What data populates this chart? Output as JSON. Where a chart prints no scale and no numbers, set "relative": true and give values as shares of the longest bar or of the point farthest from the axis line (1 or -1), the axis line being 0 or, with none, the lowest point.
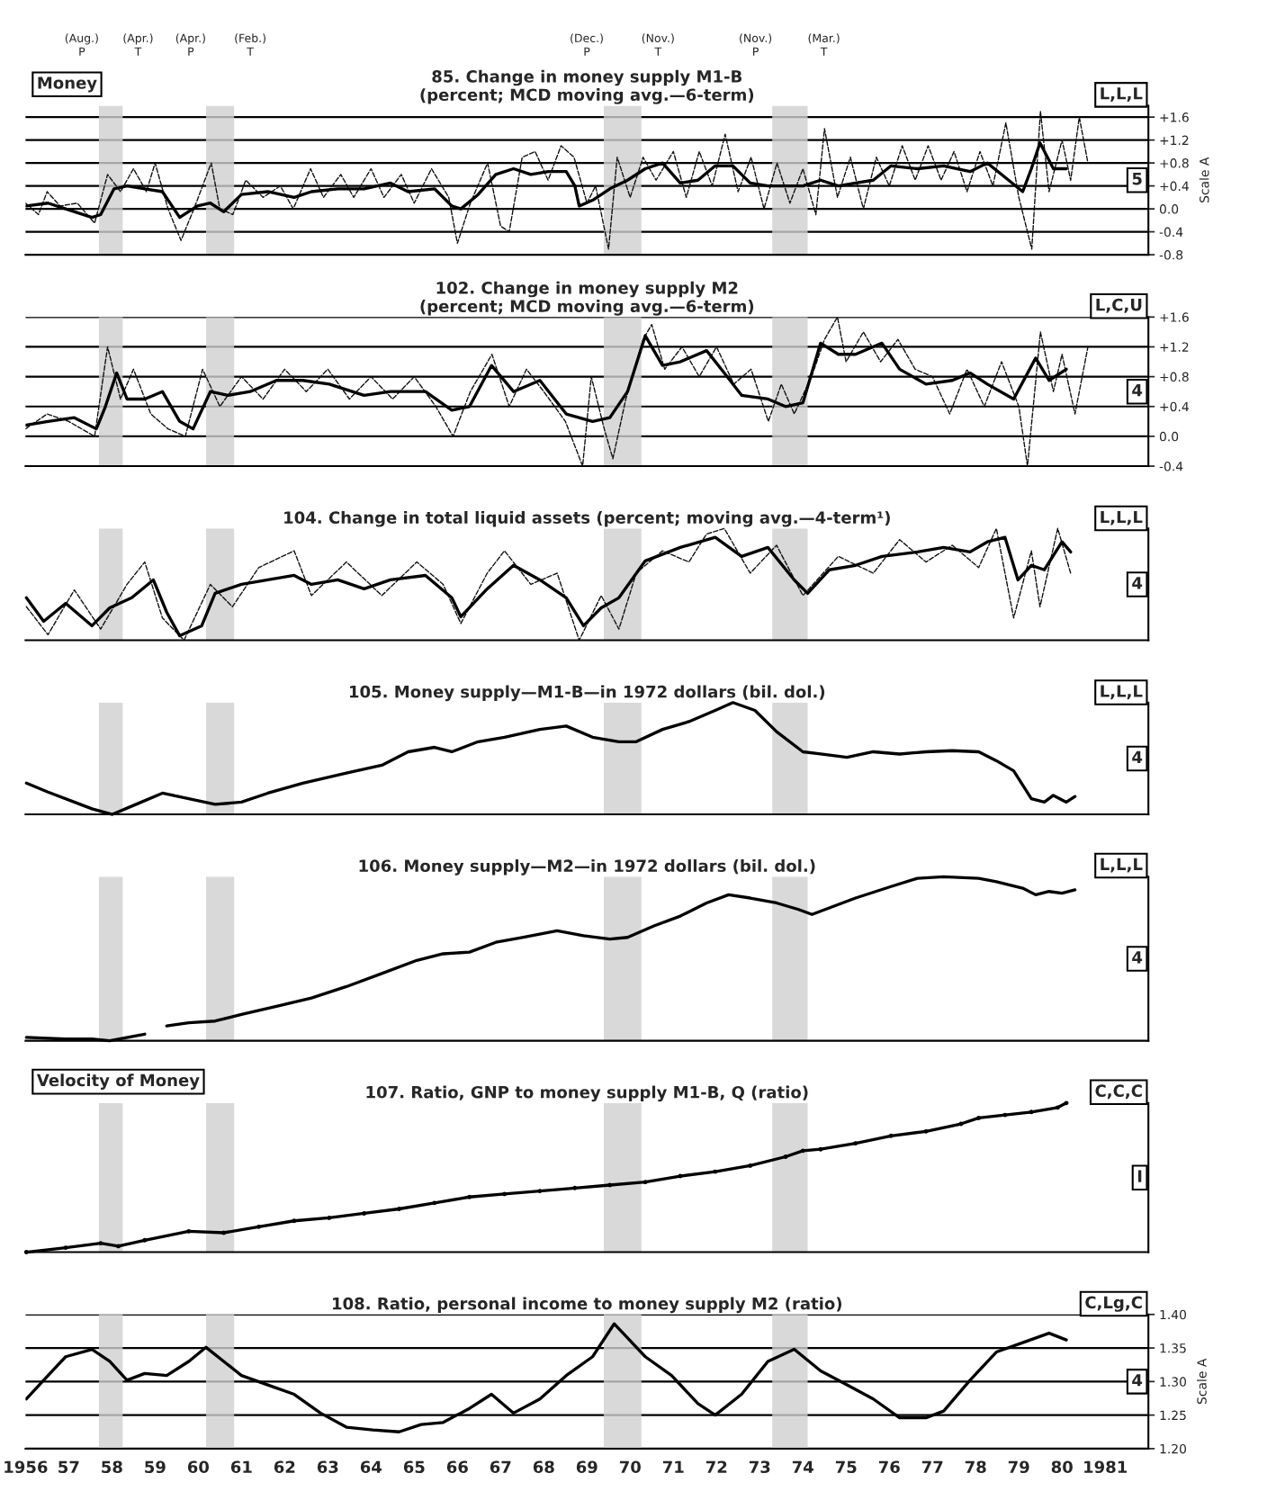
{
  "chart_data": [
    {
      "type": "line",
      "title": "85. Change in money supply M1-B\n(percent; MCD moving avg.—6-term)",
      "ylabel": "Scale A",
      "annotations": [
        "L,L,L",
        "5",
        "Money"
      ],
      "xlim": [
        1956,
        1982
      ],
      "ylim": [
        -0.8,
        1.8
      ],
      "yticks": [
        {
          "value": 1.6,
          "label": "+1.6"
        },
        {
          "value": 1.2,
          "label": "+1.2"
        },
        {
          "value": 0.8,
          "label": "+0.8"
        },
        {
          "value": 0.4,
          "label": "+0.4"
        },
        {
          "value": 0,
          "label": "0.0"
        },
        {
          "value": -0.4,
          "label": "-0.4"
        },
        {
          "value": -0.8,
          "label": "-0.8"
        }
      ],
      "grid": "y",
      "tick_labels": "y",
      "bands": [
        {
          "axis": "x",
          "from": 1957.7,
          "to": 1958.25,
          "color": "#cfcfcf",
          "label": [
            "(Aug.)\nP",
            "(Apr.)\nT"
          ]
        },
        {
          "axis": "x",
          "from": 1960.18,
          "to": 1960.83,
          "color": "#cfcfcf",
          "label": [
            "(Apr.)\nP",
            "(Feb.)\nT"
          ]
        },
        {
          "axis": "x",
          "from": 1969.39,
          "to": 1970.26,
          "color": "#cfcfcf",
          "label": [
            "(Dec.)\nP",
            "(Nov.)\nT"
          ]
        },
        {
          "axis": "x",
          "from": 1973.29,
          "to": 1974.11,
          "color": "#cfcfcf",
          "label": [
            "(Nov.)\nP",
            "(Mar.)\nT"
          ]
        }
      ],
      "series": [
        {
          "type": "line",
          "color": "#111111",
          "line_style": "dashed",
          "x": [
            1956.0,
            1956.3,
            1956.5,
            1956.8,
            1957.2,
            1957.6,
            1957.9,
            1958.2,
            1958.5,
            1958.8,
            1959.0,
            1959.3,
            1959.6,
            1959.9,
            1960.3,
            1960.5,
            1960.8,
            1961.1,
            1961.5,
            1961.9,
            1962.2,
            1962.6,
            1962.9,
            1963.3,
            1963.6,
            1964.0,
            1964.3,
            1964.7,
            1965.0,
            1965.4,
            1965.8,
            1966.0,
            1966.3,
            1966.7,
            1967.0,
            1967.2,
            1967.5,
            1967.8,
            1968.1,
            1968.4,
            1968.7,
            1969.0,
            1969.2,
            1969.5,
            1969.7,
            1970.0,
            1970.3,
            1970.6,
            1971.0,
            1971.3,
            1971.6,
            1971.9,
            1972.2,
            1972.5,
            1972.8,
            1973.1,
            1973.4,
            1973.7,
            1974.0,
            1974.3,
            1974.5,
            1974.8,
            1975.1,
            1975.4,
            1975.7,
            1976.0,
            1976.3,
            1976.6,
            1976.9,
            1977.2,
            1977.5,
            1977.8,
            1978.1,
            1978.4,
            1978.7,
            1979.0,
            1979.3,
            1979.5,
            1979.7,
            1980.0,
            1980.2,
            1980.4,
            1980.6
          ],
          "values": [
            0.1,
            -0.1,
            0.3,
            0.05,
            0.1,
            -0.25,
            0.6,
            0.3,
            0.7,
            0.3,
            0.8,
            0.0,
            -0.55,
            0.0,
            0.8,
            0.0,
            -0.1,
            0.5,
            0.2,
            0.4,
            0.0,
            0.7,
            0.2,
            0.6,
            0.2,
            0.7,
            0.2,
            0.6,
            0.1,
            0.7,
            0.2,
            -0.6,
            0.1,
            0.8,
            -0.3,
            -0.4,
            0.9,
            1.0,
            0.5,
            1.1,
            0.9,
            0.1,
            0.4,
            -0.7,
            0.9,
            0.2,
            0.9,
            0.5,
            1.0,
            0.2,
            1.0,
            0.4,
            1.3,
            0.3,
            0.9,
            0.0,
            0.8,
            0.1,
            0.7,
            -0.1,
            1.4,
            0.2,
            0.9,
            0.0,
            0.9,
            0.4,
            1.1,
            0.5,
            1.1,
            0.5,
            1.0,
            0.3,
            1.0,
            0.4,
            1.5,
            0.2,
            -0.7,
            1.7,
            0.3,
            1.2,
            0.5,
            1.6,
            0.8
          ]
        },
        {
          "type": "line",
          "color": "#000000",
          "line_style": "solid",
          "x": [
            1956.02,
            1956.52,
            1956.93,
            1957.54,
            1957.74,
            1958.05,
            1958.35,
            1958.76,
            1959.17,
            1959.57,
            1959.98,
            1960.28,
            1960.59,
            1961.0,
            1961.61,
            1962.22,
            1962.62,
            1963.23,
            1963.84,
            1964.45,
            1964.86,
            1965.47,
            1965.87,
            1966.08,
            1966.48,
            1966.89,
            1967.3,
            1967.7,
            1968.11,
            1968.52,
            1968.72,
            1968.82,
            1969.13,
            1969.53,
            1969.94,
            1970.35,
            1970.75,
            1971.16,
            1971.57,
            1971.97,
            1972.38,
            1972.78,
            1973.19,
            1973.6,
            1974.0,
            1974.41,
            1974.82,
            1975.22,
            1975.63,
            1976.04,
            1976.65,
            1977.26,
            1977.87,
            1978.27,
            1978.68,
            1979.09,
            1979.29,
            1979.49,
            1979.8,
            1980.1
          ],
          "values": [
            0.05,
            0.1,
            0.0,
            -0.15,
            -0.1,
            0.35,
            0.4,
            0.35,
            0.3,
            -0.15,
            0.05,
            0.1,
            -0.05,
            0.25,
            0.3,
            0.2,
            0.3,
            0.35,
            0.35,
            0.45,
            0.3,
            0.35,
            0.05,
            0.0,
            0.25,
            0.6,
            0.7,
            0.6,
            0.65,
            0.65,
            0.4,
            0.05,
            0.15,
            0.35,
            0.5,
            0.7,
            0.8,
            0.45,
            0.5,
            0.75,
            0.75,
            0.45,
            0.4,
            0.4,
            0.4,
            0.5,
            0.4,
            0.45,
            0.5,
            0.75,
            0.7,
            0.75,
            0.65,
            0.8,
            0.55,
            0.3,
            0.7,
            1.15,
            0.7,
            0.7
          ]
        }
      ]
    },
    {
      "type": "line",
      "title": "102. Change in money supply M2\n(percent; MCD moving avg.—6-term)",
      "annotations": [
        "L,C,U",
        "4"
      ],
      "xlim": [
        1956,
        1982
      ],
      "ylim": [
        -0.4,
        1.6
      ],
      "yticks": [
        {
          "value": 1.6,
          "label": "+1.6"
        },
        {
          "value": 1.2,
          "label": "+1.2"
        },
        {
          "value": 0.8,
          "label": "+0.8"
        },
        {
          "value": 0.4,
          "label": "+0.4"
        },
        {
          "value": 0,
          "label": "0.0"
        },
        {
          "value": -0.4,
          "label": "-0.4"
        }
      ],
      "grid": "y",
      "tick_labels": "y",
      "bands": [
        {
          "axis": "x",
          "from": 1957.7,
          "to": 1958.25,
          "color": "#cfcfcf"
        },
        {
          "axis": "x",
          "from": 1960.18,
          "to": 1960.83,
          "color": "#cfcfcf"
        },
        {
          "axis": "x",
          "from": 1969.39,
          "to": 1970.26,
          "color": "#cfcfcf"
        },
        {
          "axis": "x",
          "from": 1973.29,
          "to": 1974.11,
          "color": "#cfcfcf"
        }
      ],
      "series": [
        {
          "type": "line",
          "color": "#111111",
          "line_style": "dashed",
          "x": [
            1956.0,
            1956.5,
            1957.0,
            1957.6,
            1957.9,
            1958.2,
            1958.5,
            1958.9,
            1959.3,
            1959.7,
            1960.1,
            1960.5,
            1961.0,
            1961.5,
            1962.0,
            1962.5,
            1963.0,
            1963.5,
            1964.0,
            1964.5,
            1965.0,
            1965.5,
            1965.9,
            1966.3,
            1966.8,
            1967.2,
            1967.6,
            1968.0,
            1968.5,
            1968.9,
            1969.1,
            1969.4,
            1969.6,
            1969.9,
            1970.3,
            1970.5,
            1970.8,
            1971.2,
            1971.6,
            1972.0,
            1972.4,
            1972.8,
            1973.2,
            1973.5,
            1973.8,
            1974.2,
            1974.5,
            1974.8,
            1975.0,
            1975.4,
            1975.8,
            1976.2,
            1976.6,
            1977.0,
            1977.4,
            1977.8,
            1978.2,
            1978.6,
            1979.0,
            1979.2,
            1979.5,
            1979.8,
            1980.0,
            1980.3,
            1980.6
          ],
          "values": [
            0.1,
            0.3,
            0.2,
            0.0,
            1.2,
            0.5,
            0.9,
            0.3,
            0.1,
            0.0,
            0.9,
            0.4,
            0.8,
            0.5,
            0.9,
            0.6,
            0.9,
            0.5,
            0.8,
            0.5,
            0.8,
            0.4,
            0.0,
            0.6,
            1.1,
            0.4,
            0.9,
            0.6,
            0.2,
            -0.4,
            0.8,
            0.1,
            -0.3,
            0.5,
            1.3,
            1.5,
            0.9,
            1.2,
            0.8,
            1.2,
            0.7,
            0.9,
            0.2,
            0.7,
            0.3,
            0.8,
            1.3,
            1.6,
            1.0,
            1.4,
            1.0,
            1.3,
            0.9,
            0.8,
            0.3,
            0.9,
            0.4,
            1.0,
            0.4,
            -0.4,
            1.4,
            0.6,
            1.1,
            0.3,
            1.2
          ]
        },
        {
          "type": "line",
          "color": "#000000",
          "line_style": "solid",
          "x": [
            1956.02,
            1956.52,
            1957.13,
            1957.64,
            1957.85,
            1958.11,
            1958.35,
            1958.76,
            1959.17,
            1959.57,
            1959.88,
            1960.28,
            1960.69,
            1961.2,
            1961.81,
            1962.42,
            1963.03,
            1963.84,
            1964.45,
            1965.26,
            1965.87,
            1966.28,
            1966.79,
            1967.3,
            1967.91,
            1968.52,
            1969.13,
            1969.53,
            1969.94,
            1970.35,
            1970.75,
            1971.16,
            1971.77,
            1972.18,
            1972.58,
            1973.19,
            1973.6,
            1974.0,
            1974.41,
            1974.82,
            1975.22,
            1975.83,
            1976.24,
            1976.85,
            1977.46,
            1977.87,
            1978.27,
            1978.88,
            1979.39,
            1979.7,
            1980.1
          ],
          "values": [
            0.15,
            0.2,
            0.25,
            0.1,
            0.4,
            0.85,
            0.5,
            0.5,
            0.6,
            0.2,
            0.1,
            0.6,
            0.55,
            0.6,
            0.75,
            0.75,
            0.7,
            0.55,
            0.6,
            0.6,
            0.35,
            0.4,
            0.95,
            0.6,
            0.75,
            0.3,
            0.2,
            0.25,
            0.6,
            1.35,
            0.95,
            1.0,
            1.15,
            0.85,
            0.55,
            0.5,
            0.4,
            0.45,
            1.25,
            1.1,
            1.1,
            1.25,
            0.9,
            0.7,
            0.75,
            0.85,
            0.7,
            0.5,
            1.05,
            0.75,
            0.9
          ]
        }
      ]
    },
    {
      "type": "line",
      "title": "104. Change in total liquid assets (percent; moving avg.—4-term¹)",
      "annotations": [
        "L,L,L",
        "4"
      ],
      "relative": true,
      "xlim": [
        1956,
        1982
      ],
      "tick_labels": false,
      "bands": [
        {
          "axis": "x",
          "from": 1957.7,
          "to": 1958.25,
          "color": "#cfcfcf"
        },
        {
          "axis": "x",
          "from": 1960.18,
          "to": 1960.83,
          "color": "#cfcfcf"
        },
        {
          "axis": "x",
          "from": 1969.39,
          "to": 1970.26,
          "color": "#cfcfcf"
        },
        {
          "axis": "x",
          "from": 1973.29,
          "to": 1974.11,
          "color": "#cfcfcf"
        }
      ],
      "series": [
        {
          "type": "line",
          "color": "#111111",
          "line_style": "dashed",
          "x": [
            1956.02,
            1956.52,
            1957.13,
            1957.74,
            1958.35,
            1958.76,
            1959.17,
            1959.67,
            1960.28,
            1960.79,
            1961.4,
            1962.22,
            1962.62,
            1963.43,
            1964.25,
            1965.06,
            1965.67,
            1966.08,
            1966.69,
            1967.09,
            1967.7,
            1968.31,
            1968.82,
            1969.33,
            1969.74,
            1970.14,
            1970.75,
            1971.36,
            1971.77,
            1972.18,
            1972.78,
            1973.39,
            1974.0,
            1974.82,
            1975.63,
            1976.24,
            1976.85,
            1977.46,
            1978.07,
            1978.48,
            1978.88,
            1979.29,
            1979.49,
            1979.9,
            1980.2
          ],
          "values": [
            0.3,
            0.05,
            0.45,
            0.1,
            0.5,
            0.7,
            0.2,
            0.0,
            0.5,
            0.3,
            0.65,
            0.8,
            0.4,
            0.7,
            0.4,
            0.7,
            0.5,
            0.15,
            0.6,
            0.8,
            0.5,
            0.6,
            0.0,
            0.4,
            0.1,
            0.6,
            0.8,
            0.7,
            0.95,
            1.0,
            0.6,
            0.85,
            0.4,
            0.75,
            0.6,
            0.9,
            0.7,
            0.85,
            0.65,
            1.0,
            0.2,
            0.8,
            0.3,
            1.0,
            0.6
          ]
        },
        {
          "type": "line",
          "color": "#000000",
          "line_style": "solid",
          "x": [
            1956.02,
            1956.42,
            1956.93,
            1957.54,
            1957.95,
            1958.46,
            1958.96,
            1959.27,
            1959.57,
            1960.08,
            1960.39,
            1961.0,
            1961.61,
            1962.22,
            1962.62,
            1963.23,
            1963.84,
            1964.45,
            1965.26,
            1965.87,
            1966.08,
            1966.69,
            1967.3,
            1967.91,
            1968.52,
            1968.92,
            1969.33,
            1969.74,
            1970.35,
            1971.16,
            1971.97,
            1972.58,
            1973.19,
            1973.8,
            1974.11,
            1974.61,
            1975.22,
            1975.83,
            1976.65,
            1977.26,
            1977.87,
            1978.27,
            1978.68,
            1978.98,
            1979.29,
            1979.59,
            1980.0,
            1980.2
          ],
          "values": [
            0.38,
            0.17,
            0.33,
            0.13,
            0.29,
            0.38,
            0.54,
            0.25,
            0.04,
            0.13,
            0.42,
            0.5,
            0.54,
            0.58,
            0.5,
            0.54,
            0.46,
            0.54,
            0.58,
            0.38,
            0.21,
            0.46,
            0.67,
            0.54,
            0.38,
            0.13,
            0.29,
            0.38,
            0.71,
            0.83,
            0.92,
            0.75,
            0.83,
            0.54,
            0.42,
            0.63,
            0.67,
            0.75,
            0.79,
            0.83,
            0.79,
            0.88,
            0.92,
            0.54,
            0.67,
            0.63,
            0.88,
            0.79
          ]
        }
      ]
    },
    {
      "type": "line",
      "title": "105. Money supply—M1-B—in 1972 dollars (bil. dol.)",
      "annotations": [
        "L,L,L",
        "4"
      ],
      "relative": true,
      "xlim": [
        1956,
        1982
      ],
      "tick_labels": false,
      "bands": [
        {
          "axis": "x",
          "from": 1957.7,
          "to": 1958.25,
          "color": "#cfcfcf"
        },
        {
          "axis": "x",
          "from": 1960.18,
          "to": 1960.83,
          "color": "#cfcfcf"
        },
        {
          "axis": "x",
          "from": 1969.39,
          "to": 1970.26,
          "color": "#cfcfcf"
        },
        {
          "axis": "x",
          "from": 1973.29,
          "to": 1974.11,
          "color": "#cfcfcf"
        }
      ],
      "series": [
        {
          "type": "line",
          "color": "#000000",
          "line_style": "solid",
          "x": [
            1956.02,
            1956.52,
            1957.13,
            1957.54,
            1958.01,
            1958.56,
            1959.17,
            1959.78,
            1960.39,
            1961.0,
            1961.61,
            1962.42,
            1963.43,
            1964.25,
            1964.86,
            1965.47,
            1965.87,
            1966.48,
            1967.09,
            1967.91,
            1968.52,
            1969.13,
            1969.74,
            1970.14,
            1970.75,
            1971.36,
            1971.97,
            1972.38,
            1972.89,
            1973.39,
            1974.0,
            1974.41,
            1975.02,
            1975.63,
            1976.24,
            1976.85,
            1977.46,
            1978.07,
            1978.48,
            1978.88,
            1979.29,
            1979.59,
            1979.8,
            1980.1,
            1980.3
          ],
          "values": [
            0.28,
            0.2,
            0.11,
            0.05,
            0.0,
            0.09,
            0.19,
            0.14,
            0.09,
            0.11,
            0.19,
            0.28,
            0.37,
            0.44,
            0.56,
            0.6,
            0.56,
            0.65,
            0.69,
            0.76,
            0.79,
            0.69,
            0.65,
            0.65,
            0.76,
            0.83,
            0.93,
            1.0,
            0.93,
            0.74,
            0.56,
            0.54,
            0.51,
            0.56,
            0.54,
            0.56,
            0.57,
            0.56,
            0.48,
            0.39,
            0.14,
            0.11,
            0.17,
            0.11,
            0.16
          ]
        }
      ]
    },
    {
      "type": "line",
      "title": "106. Money supply—M2—in 1972 dollars (bil. dol.)",
      "annotations": [
        "L,L,L",
        "4"
      ],
      "relative": true,
      "xlim": [
        1956,
        1982
      ],
      "tick_labels": false,
      "bands": [
        {
          "axis": "x",
          "from": 1957.7,
          "to": 1958.25,
          "color": "#cfcfcf"
        },
        {
          "axis": "x",
          "from": 1960.18,
          "to": 1960.83,
          "color": "#cfcfcf"
        },
        {
          "axis": "x",
          "from": 1969.39,
          "to": 1970.26,
          "color": "#cfcfcf"
        },
        {
          "axis": "x",
          "from": 1973.29,
          "to": 1974.11,
          "color": "#cfcfcf"
        }
      ],
      "series": [
        {
          "type": "line",
          "color": "#000000",
          "line_style": "solid",
          "x": [
            1956.02,
            1956.93,
            1957.54,
            1957.95,
            1958.56,
            1958.76,
            1959.0,
            1959.27,
            1959.78,
            1960.39,
            1961.0,
            1961.81,
            1962.62,
            1963.43,
            1964.25,
            1965.06,
            1965.67,
            1966.28,
            1966.89,
            1967.5,
            1968.31,
            1968.92,
            1969.53,
            1969.94,
            1970.55,
            1971.16,
            1971.77,
            1972.28,
            1972.78,
            1973.39,
            1973.9,
            1974.21,
            1974.61,
            1975.22,
            1976.04,
            1976.65,
            1977.26,
            1978.07,
            1978.48,
            1979.09,
            1979.39,
            1979.7,
            1980.0,
            1980.3
          ],
          "values": [
            0.02,
            0.01,
            0.01,
            0.0,
            0.03,
            0.04,
            null,
            0.09,
            0.11,
            0.12,
            0.16,
            0.21,
            0.26,
            0.33,
            0.41,
            0.49,
            0.53,
            0.54,
            0.6,
            0.63,
            0.67,
            0.64,
            0.62,
            0.63,
            0.7,
            0.76,
            0.84,
            0.89,
            0.87,
            0.84,
            0.8,
            0.77,
            0.81,
            0.87,
            0.94,
            0.99,
            1.0,
            0.99,
            0.97,
            0.93,
            0.89,
            0.91,
            0.9,
            0.92
          ]
        }
      ]
    },
    {
      "type": "line",
      "title": "107. Ratio, GNP to money supply M1-B, Q (ratio)",
      "annotations": [
        "C,C,C",
        "I",
        "Velocity of Money"
      ],
      "relative": true,
      "xlim": [
        1956,
        1982
      ],
      "tick_labels": false,
      "bands": [
        {
          "axis": "x",
          "from": 1957.7,
          "to": 1958.25,
          "color": "#cfcfcf"
        },
        {
          "axis": "x",
          "from": 1960.18,
          "to": 1960.83,
          "color": "#cfcfcf"
        },
        {
          "axis": "x",
          "from": 1969.39,
          "to": 1970.26,
          "color": "#cfcfcf"
        },
        {
          "axis": "x",
          "from": 1973.29,
          "to": 1974.11,
          "color": "#cfcfcf"
        }
      ],
      "series": [
        {
          "type": "line",
          "color": "#000000",
          "line_style": "solid",
          "marker": "circle",
          "x": [
            1956.02,
            1956.93,
            1957.74,
            1958.15,
            1958.76,
            1959.78,
            1960.59,
            1961.4,
            1962.22,
            1963.03,
            1963.84,
            1964.65,
            1965.47,
            1966.28,
            1967.09,
            1967.91,
            1968.72,
            1969.53,
            1970.35,
            1971.16,
            1971.97,
            1972.78,
            1973.6,
            1974.0,
            1974.41,
            1975.22,
            1976.04,
            1976.85,
            1977.66,
            1978.07,
            1978.68,
            1979.29,
            1979.9,
            1980.1
          ],
          "values": [
            0.0,
            0.03,
            0.06,
            0.04,
            0.08,
            0.14,
            0.13,
            0.17,
            0.21,
            0.23,
            0.26,
            0.29,
            0.33,
            0.37,
            0.39,
            0.41,
            0.43,
            0.45,
            0.47,
            0.51,
            0.54,
            0.58,
            0.64,
            0.68,
            0.69,
            0.73,
            0.78,
            0.81,
            0.86,
            0.9,
            0.92,
            0.94,
            0.97,
            1.0
          ]
        }
      ]
    },
    {
      "type": "line",
      "title": "108. Ratio, personal income to money supply M2 (ratio)",
      "ylabel": "Scale A",
      "annotations": [
        "C,Lg,C",
        "4"
      ],
      "xlim": [
        1956,
        1982
      ],
      "ylim": [
        1.2,
        1.4
      ],
      "yticks": [
        {
          "value": 1.4,
          "label": "1.40"
        },
        {
          "value": 1.35,
          "label": "1.35"
        },
        {
          "value": 1.3,
          "label": "1.30"
        },
        {
          "value": 1.25,
          "label": "1.25"
        },
        {
          "value": 1.2,
          "label": "1.20"
        }
      ],
      "grid": "y",
      "xticks": [
        1956,
        {
          "value": 1957,
          "label": "57"
        },
        {
          "value": 1958,
          "label": "58"
        },
        {
          "value": 1959,
          "label": "59"
        },
        {
          "value": 1960,
          "label": "60"
        },
        {
          "value": 1961,
          "label": "61"
        },
        {
          "value": 1962,
          "label": "62"
        },
        {
          "value": 1963,
          "label": "63"
        },
        {
          "value": 1964,
          "label": "64"
        },
        {
          "value": 1965,
          "label": "65"
        },
        {
          "value": 1966,
          "label": "66"
        },
        {
          "value": 1967,
          "label": "67"
        },
        {
          "value": 1968,
          "label": "68"
        },
        {
          "value": 1969,
          "label": "69"
        },
        {
          "value": 1970,
          "label": "70"
        },
        {
          "value": 1971,
          "label": "71"
        },
        {
          "value": 1972,
          "label": "72"
        },
        {
          "value": 1973,
          "label": "73"
        },
        {
          "value": 1974,
          "label": "74"
        },
        {
          "value": 1975,
          "label": "75"
        },
        {
          "value": 1976,
          "label": "76"
        },
        {
          "value": 1977,
          "label": "77"
        },
        {
          "value": 1978,
          "label": "78"
        },
        {
          "value": 1979,
          "label": "79"
        },
        {
          "value": 1980,
          "label": "80"
        },
        1981
      ],
      "bands": [
        {
          "axis": "x",
          "from": 1957.7,
          "to": 1958.25,
          "color": "#cfcfcf"
        },
        {
          "axis": "x",
          "from": 1960.18,
          "to": 1960.83,
          "color": "#cfcfcf"
        },
        {
          "axis": "x",
          "from": 1969.39,
          "to": 1970.26,
          "color": "#cfcfcf"
        },
        {
          "axis": "x",
          "from": 1973.29,
          "to": 1974.11,
          "color": "#cfcfcf"
        }
      ],
      "series": [
        {
          "type": "line",
          "color": "#000000",
          "line_style": "solid",
          "x": [
            1956.02,
            1956.42,
            1956.93,
            1957.54,
            1957.95,
            1958.35,
            1958.76,
            1959.27,
            1959.78,
            1960.18,
            1960.59,
            1961.0,
            1961.61,
            1962.22,
            1962.83,
            1963.43,
            1964.04,
            1964.65,
            1965.16,
            1965.67,
            1966.28,
            1966.79,
            1967.3,
            1967.91,
            1968.52,
            1969.13,
            1969.63,
            1969.94,
            1970.35,
            1970.96,
            1971.57,
            1971.97,
            1972.58,
            1973.19,
            1973.8,
            1974.41,
            1975.02,
            1975.63,
            1976.24,
            1976.85,
            1977.26,
            1977.87,
            1978.48,
            1979.09,
            1979.7,
            1980.1
          ],
          "values": [
            1.274,
            1.302,
            1.337,
            1.348,
            1.33,
            1.302,
            1.312,
            1.309,
            1.33,
            1.351,
            1.33,
            1.309,
            1.295,
            1.281,
            1.253,
            1.232,
            1.228,
            1.225,
            1.236,
            1.239,
            1.26,
            1.281,
            1.253,
            1.274,
            1.309,
            1.337,
            1.386,
            1.365,
            1.337,
            1.309,
            1.267,
            1.25,
            1.281,
            1.33,
            1.348,
            1.316,
            1.295,
            1.274,
            1.246,
            1.246,
            1.256,
            1.302,
            1.344,
            1.358,
            1.372,
            1.362
          ]
        }
      ]
    }
  ]
}
